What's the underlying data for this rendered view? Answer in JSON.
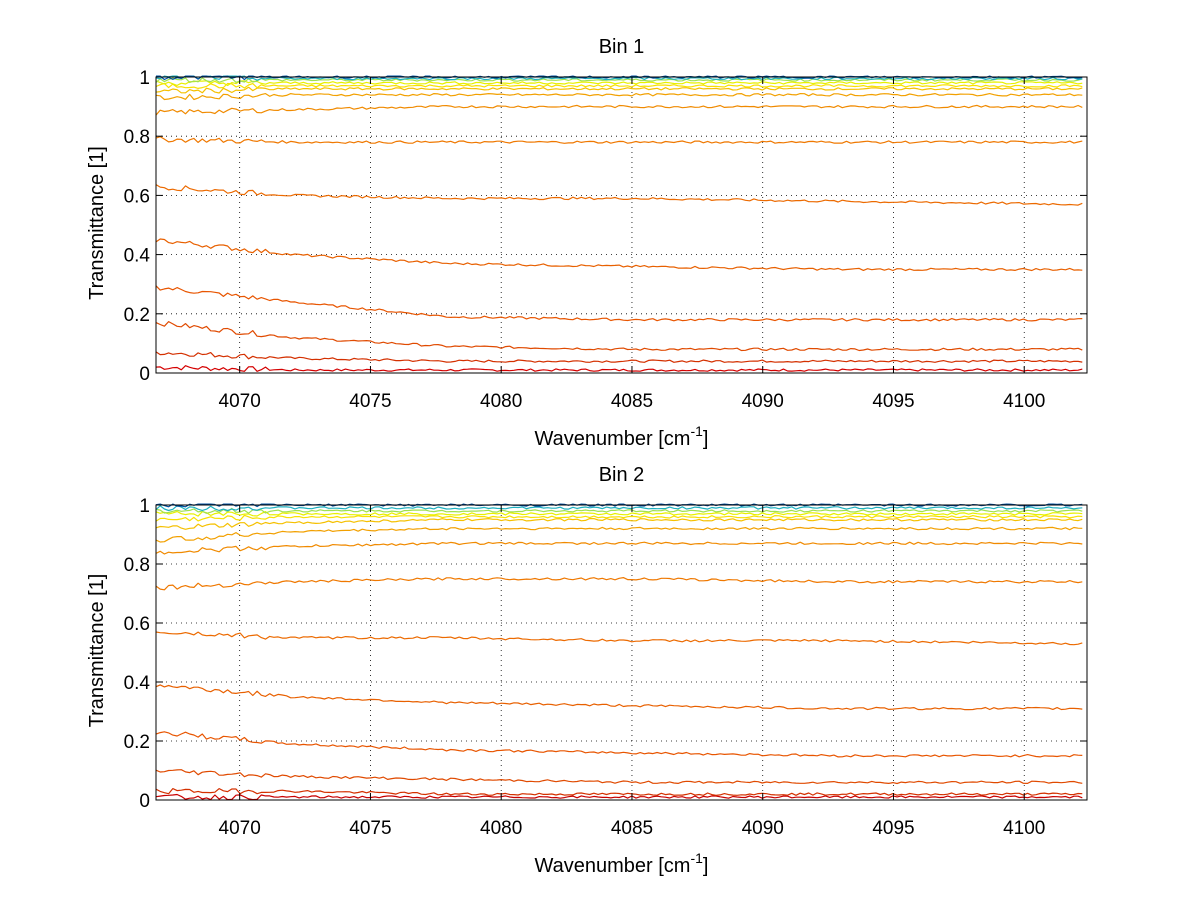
{
  "chart_data": [
    {
      "type": "line",
      "title": "Bin 1",
      "xlabel_text": "Wavenumber [cm",
      "xlabel_sup": "-1",
      "xlabel_close": "]",
      "ylabel": "Transmittance [1]",
      "xlim": [
        4066.8,
        4102.4
      ],
      "ylim": [
        0,
        1
      ],
      "xticks": [
        4070,
        4075,
        4080,
        4085,
        4090,
        4095,
        4100
      ],
      "yticks": [
        0,
        0.2,
        0.4,
        0.6,
        0.8,
        1
      ],
      "ytick_labels": [
        "0",
        "0.2",
        "0.4",
        "0.6",
        "0.8",
        "1"
      ],
      "grid": true,
      "series": [
        {
          "color": "#d40000",
          "values": [
            0.02,
            0.01,
            0.01,
            0.01,
            0.01,
            0.01
          ]
        },
        {
          "color": "#d43000",
          "values": [
            0.07,
            0.05,
            0.04,
            0.04,
            0.04,
            0.04
          ]
        },
        {
          "color": "#e04a00",
          "values": [
            0.17,
            0.12,
            0.09,
            0.08,
            0.08,
            0.08
          ]
        },
        {
          "color": "#e85500",
          "values": [
            0.29,
            0.24,
            0.19,
            0.18,
            0.18,
            0.18
          ]
        },
        {
          "color": "#e86000",
          "values": [
            0.45,
            0.4,
            0.37,
            0.36,
            0.35,
            0.35
          ]
        },
        {
          "color": "#ec6a00",
          "values": [
            0.63,
            0.6,
            0.59,
            0.59,
            0.58,
            0.57
          ]
        },
        {
          "color": "#ef7800",
          "values": [
            0.79,
            0.78,
            0.78,
            0.78,
            0.78,
            0.78
          ]
        },
        {
          "color": "#f08a00",
          "values": [
            0.88,
            0.89,
            0.9,
            0.9,
            0.9,
            0.9
          ]
        },
        {
          "color": "#f2a000",
          "values": [
            0.93,
            0.94,
            0.94,
            0.94,
            0.94,
            0.94
          ]
        },
        {
          "color": "#f5c000",
          "values": [
            0.95,
            0.96,
            0.96,
            0.96,
            0.96,
            0.96
          ]
        },
        {
          "color": "#f8e000",
          "values": [
            0.97,
            0.97,
            0.97,
            0.97,
            0.97,
            0.97
          ]
        },
        {
          "color": "#e8f000",
          "values": [
            0.98,
            0.98,
            0.98,
            0.98,
            0.98,
            0.98
          ]
        },
        {
          "color": "#a0e050",
          "values": [
            0.99,
            0.99,
            0.99,
            0.99,
            0.99,
            0.99
          ]
        },
        {
          "color": "#20b0c0",
          "values": [
            1.0,
            0.995,
            0.995,
            0.995,
            0.995,
            0.995
          ]
        },
        {
          "color": "#0050a0",
          "values": [
            1.0,
            1.0,
            1.0,
            1.0,
            1.0,
            1.0
          ]
        }
      ],
      "x": [
        4066.8,
        4072,
        4078,
        4085,
        4093,
        4102.2
      ]
    },
    {
      "type": "line",
      "title": "Bin 2",
      "xlabel_text": "Wavenumber [cm",
      "xlabel_sup": "-1",
      "xlabel_close": "]",
      "ylabel": "Transmittance [1]",
      "xlim": [
        4066.8,
        4102.4
      ],
      "ylim": [
        0,
        1
      ],
      "xticks": [
        4070,
        4075,
        4080,
        4085,
        4090,
        4095,
        4100
      ],
      "yticks": [
        0,
        0.2,
        0.4,
        0.6,
        0.8,
        1
      ],
      "ytick_labels": [
        "0",
        "0.2",
        "0.4",
        "0.6",
        "0.8",
        "1"
      ],
      "grid": true,
      "series": [
        {
          "color": "#c80000",
          "values": [
            0.01,
            0.01,
            0.01,
            0.01,
            0.01,
            0.01
          ]
        },
        {
          "color": "#d43000",
          "values": [
            0.03,
            0.03,
            0.02,
            0.02,
            0.02,
            0.02
          ]
        },
        {
          "color": "#e04a00",
          "values": [
            0.1,
            0.08,
            0.07,
            0.06,
            0.06,
            0.06
          ]
        },
        {
          "color": "#e85500",
          "values": [
            0.23,
            0.19,
            0.17,
            0.16,
            0.15,
            0.15
          ]
        },
        {
          "color": "#e86000",
          "values": [
            0.39,
            0.35,
            0.33,
            0.32,
            0.31,
            0.31
          ]
        },
        {
          "color": "#ec6a00",
          "values": [
            0.57,
            0.55,
            0.55,
            0.54,
            0.54,
            0.53
          ]
        },
        {
          "color": "#ef7800",
          "values": [
            0.72,
            0.74,
            0.75,
            0.75,
            0.74,
            0.74
          ]
        },
        {
          "color": "#f08a00",
          "values": [
            0.84,
            0.86,
            0.87,
            0.87,
            0.87,
            0.87
          ]
        },
        {
          "color": "#f2a000",
          "values": [
            0.88,
            0.91,
            0.92,
            0.92,
            0.92,
            0.92
          ]
        },
        {
          "color": "#f5c000",
          "values": [
            0.92,
            0.94,
            0.95,
            0.95,
            0.95,
            0.95
          ]
        },
        {
          "color": "#f8e000",
          "values": [
            0.95,
            0.96,
            0.96,
            0.96,
            0.96,
            0.96
          ]
        },
        {
          "color": "#e8f000",
          "values": [
            0.97,
            0.97,
            0.97,
            0.97,
            0.97,
            0.97
          ]
        },
        {
          "color": "#a0e050",
          "values": [
            0.98,
            0.98,
            0.98,
            0.98,
            0.98,
            0.98
          ]
        },
        {
          "color": "#20b0c0",
          "values": [
            0.99,
            0.99,
            0.99,
            0.99,
            0.99,
            0.99
          ]
        },
        {
          "color": "#0050a0",
          "values": [
            1.0,
            1.0,
            1.0,
            1.0,
            1.0,
            1.0
          ]
        }
      ],
      "x": [
        4066.8,
        4072,
        4078,
        4085,
        4093,
        4102.2
      ]
    }
  ]
}
